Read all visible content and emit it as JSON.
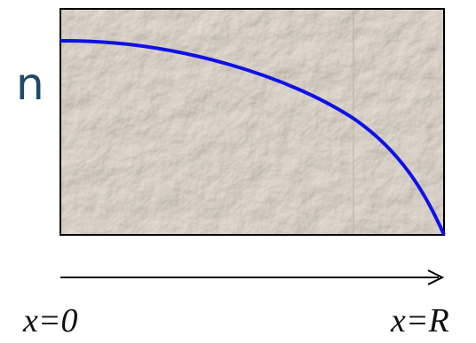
{
  "heading_fragment": "n",
  "labels": [
    "x=0",
    "x=R"
  ]
}
